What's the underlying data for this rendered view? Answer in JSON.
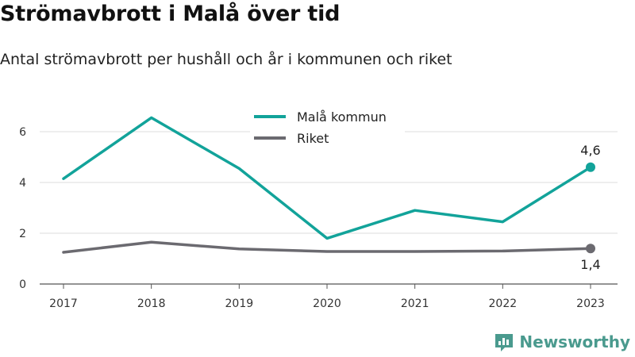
{
  "title": "Strömavbrott i Malå över tid",
  "subtitle": "Antal strömavbrott per hushåll och år i kommunen och riket",
  "brand": {
    "name": "Newsworthy",
    "logo_icon": "newsworthy-logo-icon",
    "color": "#4a9a8e"
  },
  "chart_data": {
    "type": "line",
    "x": [
      "2017",
      "2018",
      "2019",
      "2020",
      "2021",
      "2022",
      "2023"
    ],
    "yticks": [
      "0",
      "2",
      "4",
      "6"
    ],
    "ylim": [
      0,
      7
    ],
    "grid": true,
    "legend_position": "top-center",
    "series": [
      {
        "name": "Malå kommun",
        "color": "#12a39a",
        "values": [
          4.15,
          6.55,
          4.55,
          1.8,
          2.9,
          2.45,
          4.6
        ],
        "end_label": "4,6"
      },
      {
        "name": "Riket",
        "color": "#6b6a70",
        "values": [
          1.25,
          1.65,
          1.38,
          1.28,
          1.28,
          1.3,
          1.4
        ],
        "end_label": "1,4"
      }
    ]
  }
}
